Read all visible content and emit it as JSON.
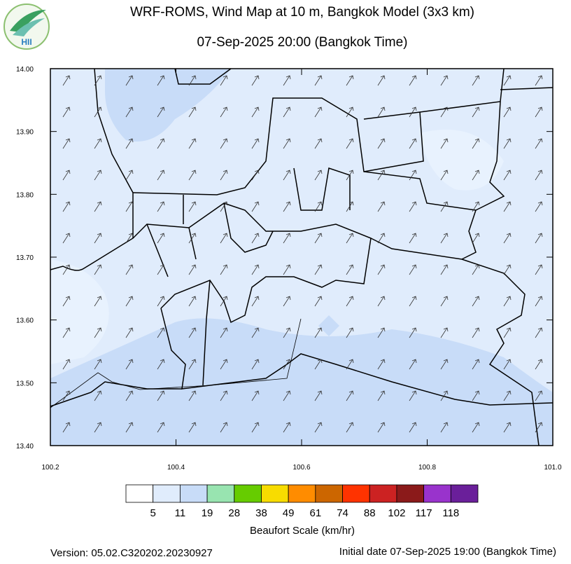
{
  "header": {
    "title": "WRF-ROMS, Wind Map at 10 m, Bangkok Model (3x3 km)",
    "subtitle": "07-Sep-2025 20:00 (Bangkok Time)",
    "logo": "HII"
  },
  "map": {
    "xticks": [
      "100.2",
      "100.4",
      "100.6",
      "100.8",
      "101.0"
    ],
    "yticks": [
      "14.00",
      "13.90",
      "13.80",
      "13.70",
      "13.60",
      "13.50",
      "13.40"
    ]
  },
  "legend": {
    "labels": [
      "5",
      "11",
      "19",
      "28",
      "38",
      "49",
      "61",
      "74",
      "88",
      "102",
      "117",
      "118"
    ],
    "colors": [
      "#ffffff",
      "#e0ecfc",
      "#c8dcf8",
      "#98e4b0",
      "#66cc00",
      "#f8dc00",
      "#ff8c00",
      "#cc6600",
      "#ff3300",
      "#cc2222",
      "#8b1a1a",
      "#9933cc",
      "#6a1f9a"
    ],
    "title": "Beaufort Scale (km/hr)"
  },
  "footer": {
    "version": "Version: 05.02.C320202.20230927",
    "initial": "Initial date 07-Sep-2025 19:00 (Bangkok Time)"
  }
}
